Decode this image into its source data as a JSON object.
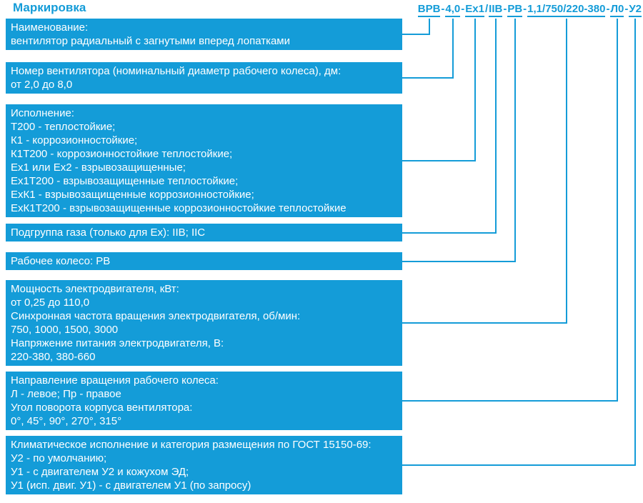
{
  "title": "Маркировка",
  "code": {
    "full": "ВРВ-4,0-Ex1/IIB-РВ-1,1/750/220-380-Л0-У2",
    "segments": [
      "ВРВ",
      "4,0",
      "Ex1",
      "IIB",
      "РВ",
      "1,1/750/220-380",
      "Л0",
      "У2"
    ],
    "separators": [
      "-",
      "-",
      "/",
      "-",
      "-",
      "-",
      "-"
    ]
  },
  "boxes": [
    {
      "name": "Наименование",
      "lines": [
        "Наименование:",
        "вентилятор радиальный с загнутыми вперед лопатками"
      ]
    },
    {
      "name": "Номер вентилятора",
      "lines": [
        "Номер вентилятора (номинальный диаметр рабочего колеса), дм:",
        "от 2,0 до 8,0"
      ]
    },
    {
      "name": "Исполнение",
      "lines": [
        "Исполнение:",
        "Т200 - теплостойкие;",
        "К1 - коррозионностойкие;",
        "К1Т200 - коррозионностойкие теплостойкие;",
        "Ex1 или Ex2 - взрывозащищенные;",
        "Ex1Т200 - взрывозащищенные теплостойкие;",
        "ExК1 - взрывозащищенные коррозионностойкие;",
        "ExК1Т200 - взрывозащищенные коррозионностойкие теплостойкие"
      ]
    },
    {
      "name": "Подгруппа газа",
      "lines": [
        "Подгруппа газа (только для Ex): IIB; IIC"
      ]
    },
    {
      "name": "Рабочее колесо",
      "lines": [
        "Рабочее колесо: РВ"
      ]
    },
    {
      "name": "Электродвигатель",
      "lines": [
        "Мощность электродвигателя, кВт:",
        "от 0,25 до 110,0",
        "Синхронная частота вращения электродвигателя, об/мин:",
        "750, 1000, 1500, 3000",
        "Напряжение питания электродвигателя, В:",
        "220-380, 380-660"
      ]
    },
    {
      "name": "Направление вращения",
      "lines": [
        "Направление вращения рабочего колеса:",
        "Л - левое; Пр - правое",
        "Угол поворота корпуса вентилятора:",
        "0°, 45°, 90°, 270°, 315°"
      ]
    },
    {
      "name": "Климатическое исполнение",
      "lines": [
        "Климатическое исполнение и категория размещения по ГОСТ 15150-69:",
        "У2 - по умолчанию;",
        "У1 - с двигателем У2 и кожухом ЭД;",
        "У1 (исп. двиг. У1) - с двигателем У1 (по запросу)"
      ]
    }
  ],
  "colors": {
    "accent": "#149cd8",
    "box_text": "#ffffff",
    "page_bg": "#ffffff"
  }
}
